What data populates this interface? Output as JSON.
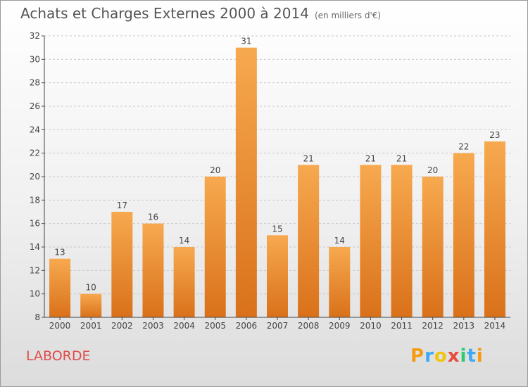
{
  "header": {
    "title": "Achats et Charges Externes 2000 à 2014",
    "subtitle": "(en milliers d'€)"
  },
  "commune": "LABORDE",
  "logo": {
    "text": "Proxiti",
    "letters": [
      {
        "ch": "P",
        "color": "#f39c12"
      },
      {
        "ch": "r",
        "color": "#3fa9f5"
      },
      {
        "ch": "o",
        "color": "#f1c40f"
      },
      {
        "ch": "x",
        "color": "#e74c3c"
      },
      {
        "ch": "i",
        "color": "#2ecc71"
      },
      {
        "ch": "t",
        "color": "#3fa9f5"
      },
      {
        "ch": "i",
        "color": "#f39c12"
      }
    ]
  },
  "chart_data": {
    "type": "bar",
    "title": "Achats et Charges Externes 2000 à 2014",
    "subtitle": "(en milliers d'€)",
    "categories": [
      "2000",
      "2001",
      "2002",
      "2003",
      "2004",
      "2005",
      "2006",
      "2007",
      "2008",
      "2009",
      "2010",
      "2011",
      "2012",
      "2013",
      "2014"
    ],
    "values": [
      13,
      10,
      17,
      16,
      14,
      20,
      31,
      15,
      21,
      14,
      21,
      21,
      20,
      22,
      23
    ],
    "ylim": [
      8,
      32
    ],
    "yticks": [
      8,
      10,
      12,
      14,
      16,
      18,
      20,
      22,
      24,
      26,
      28,
      30,
      32
    ],
    "grid": true,
    "bar_color_top": "#f7a94f",
    "bar_color_bottom": "#d9711a"
  }
}
